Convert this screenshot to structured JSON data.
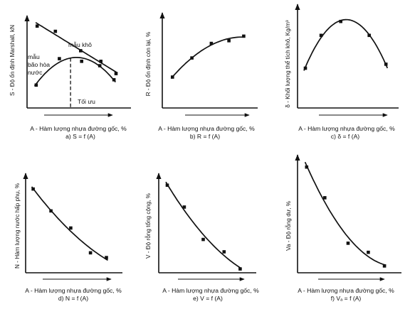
{
  "chart_data": [
    {
      "type": "scatter",
      "id": "a",
      "caption": "a) S = f (A)",
      "xlabel": "A - Hàm lượng nhựa đường gốc, %",
      "ylabel": "S - Độ ổn định Marshall, kN",
      "xlim": [
        0,
        10
      ],
      "ylim": [
        0,
        10
      ],
      "series": [
        {
          "name": "mẫu khô",
          "fit": "linear",
          "points": [
            [
              1.0,
              9.3
            ],
            [
              2.8,
              8.7
            ],
            [
              5.3,
              6.5
            ],
            [
              7.3,
              5.3
            ],
            [
              8.8,
              3.9
            ]
          ]
        },
        {
          "name": "mẫu bão hòa nước",
          "fit": "quadratic",
          "points": [
            [
              0.9,
              2.6
            ],
            [
              3.2,
              5.6
            ],
            [
              5.4,
              5.3
            ],
            [
              7.2,
              4.8
            ],
            [
              8.6,
              3.2
            ]
          ]
        }
      ],
      "annotations": [
        {
          "text": "Tối ưu",
          "x": 4.3
        }
      ]
    },
    {
      "type": "scatter",
      "id": "b",
      "caption": "b) R = f (A)",
      "xlabel": "A - Hàm lượng nhựa đường gốc, %",
      "ylabel": "R - Độ ổn định còn lại, %",
      "xlim": [
        0,
        10
      ],
      "ylim": [
        0,
        10
      ],
      "fit": "concave",
      "series": [
        {
          "points": [
            [
              1.1,
              3.4
            ],
            [
              3.2,
              5.5
            ],
            [
              5.3,
              7.1
            ],
            [
              7.2,
              7.4
            ],
            [
              8.8,
              7.9
            ]
          ]
        }
      ]
    },
    {
      "type": "scatter",
      "id": "c",
      "caption": "c) δ = f (A)",
      "xlabel": "A - Hàm lượng nhựa đường gốc, %",
      "ylabel": "δ - Khối lượng thể tích khô, Kg/m³",
      "xlim": [
        0,
        10
      ],
      "ylim": [
        0,
        10
      ],
      "fit": "quadratic",
      "series": [
        {
          "points": [
            [
              0.8,
              4.0
            ],
            [
              2.4,
              7.3
            ],
            [
              4.4,
              8.7
            ],
            [
              7.3,
              7.3
            ],
            [
              9.0,
              4.4
            ]
          ]
        }
      ]
    },
    {
      "type": "scatter",
      "id": "d",
      "caption": "d) N = f (A)",
      "xlabel": "A - Hàm lượng nhựa đường gốc, %",
      "ylabel": "N - Hàm lượng nước hấp phụ, %",
      "xlim": [
        0,
        10
      ],
      "ylim": [
        0,
        10
      ],
      "fit": "convex",
      "series": [
        {
          "points": [
            [
              0.8,
              8.8
            ],
            [
              2.7,
              6.5
            ],
            [
              4.8,
              4.7
            ],
            [
              6.9,
              2.1
            ],
            [
              8.6,
              1.6
            ]
          ]
        }
      ]
    },
    {
      "type": "scatter",
      "id": "e",
      "caption": "e) V = f (A)",
      "xlabel": "A - Hàm lượng nhựa đường gốc, %",
      "ylabel": "V - Độ rỗng tổng cộng, %",
      "xlim": [
        0,
        10
      ],
      "ylim": [
        0,
        10
      ],
      "fit": "convex",
      "series": [
        {
          "points": [
            [
              0.9,
              9.2
            ],
            [
              2.7,
              6.9
            ],
            [
              4.7,
              3.5
            ],
            [
              6.9,
              2.2
            ],
            [
              8.6,
              0.4
            ]
          ]
        }
      ]
    },
    {
      "type": "scatter",
      "id": "f",
      "caption": "f) Vₐ = f (A)",
      "xlabel": "A - Hàm lượng nhựa đường gốc, %",
      "ylabel": "Va - Độ rỗng dư, %",
      "xlim": [
        0,
        10
      ],
      "ylim": [
        0,
        10
      ],
      "fit": "convex",
      "series": [
        {
          "points": [
            [
              0.9,
              9.3
            ],
            [
              2.7,
              6.6
            ],
            [
              5.0,
              2.6
            ],
            [
              7.0,
              1.8
            ],
            [
              8.6,
              0.6
            ]
          ]
        }
      ]
    }
  ]
}
